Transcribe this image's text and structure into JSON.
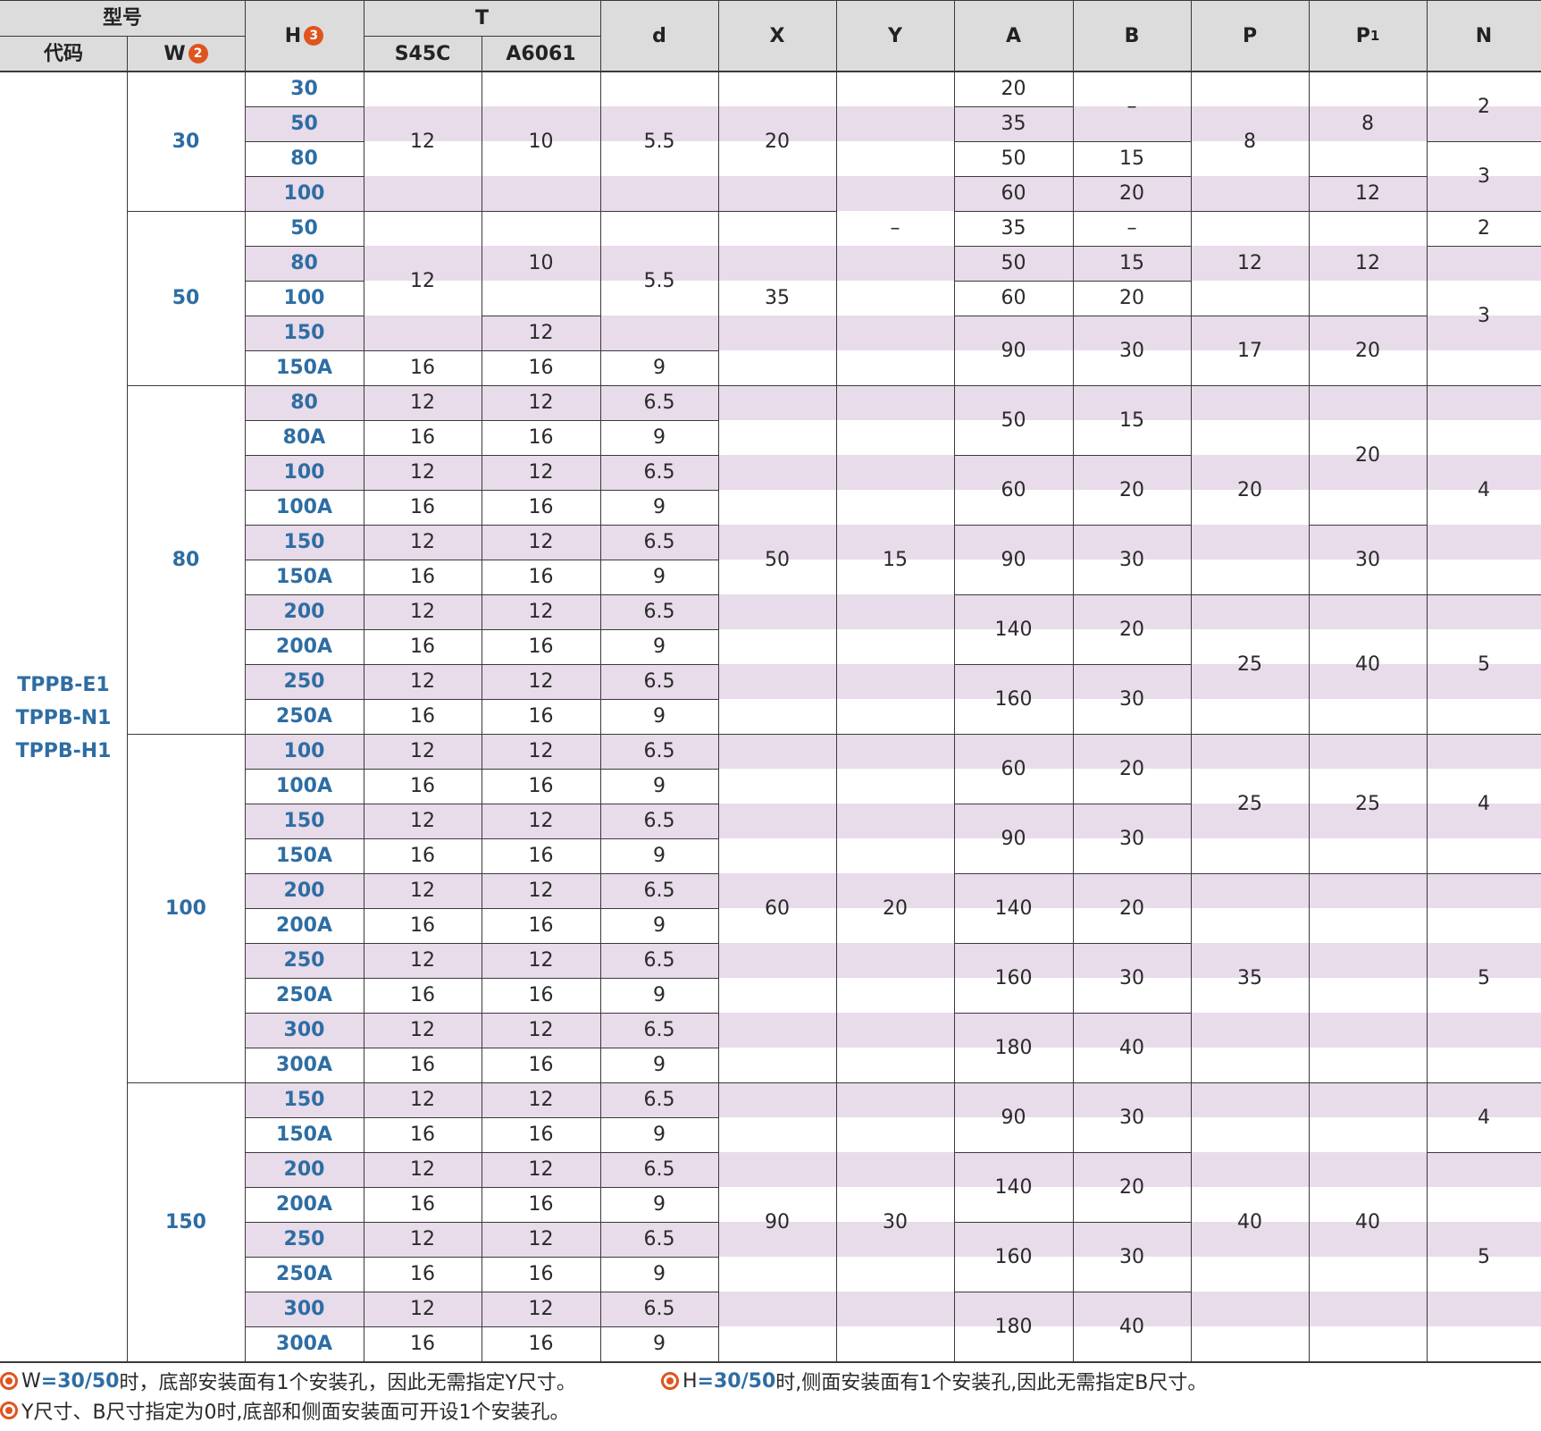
{
  "headers": {
    "model": "型号",
    "code": "代码",
    "w": "W",
    "w_badge": "2",
    "h": "H",
    "h_badge": "3",
    "t": "T",
    "s45c": "S45C",
    "a6061": "A6061",
    "d": "d",
    "x": "X",
    "y": "Y",
    "a": "A",
    "b": "B",
    "p": "P",
    "p1_main": "P",
    "p1_sub": "1",
    "n": "N"
  },
  "codes": [
    "TPPB-E1",
    "TPPB-N1",
    "TPPB-H1"
  ],
  "groups": [
    {
      "w": "30",
      "rows": [
        0,
        3
      ]
    },
    {
      "w": "50",
      "rows": [
        4,
        8
      ]
    },
    {
      "w": "80",
      "rows": [
        9,
        18
      ]
    },
    {
      "w": "100",
      "rows": [
        19,
        28
      ]
    },
    {
      "w": "150",
      "rows": [
        29,
        36
      ]
    }
  ],
  "h_values": [
    "30",
    "50",
    "80",
    "100",
    "50",
    "80",
    "100",
    "150",
    "150A",
    "80",
    "80A",
    "100",
    "100A",
    "150",
    "150A",
    "200",
    "200A",
    "250",
    "250A",
    "100",
    "100A",
    "150",
    "150A",
    "200",
    "200A",
    "250",
    "250A",
    "300",
    "300A",
    "150",
    "150A",
    "200",
    "200A",
    "250",
    "250A",
    "300",
    "300A"
  ],
  "spans": {
    "s45c": [
      [
        0,
        3,
        "12"
      ],
      [
        4,
        7,
        "12"
      ],
      [
        8,
        8,
        "16"
      ],
      [
        9,
        9,
        "12"
      ],
      [
        10,
        10,
        "16"
      ],
      [
        11,
        11,
        "12"
      ],
      [
        12,
        12,
        "16"
      ],
      [
        13,
        13,
        "12"
      ],
      [
        14,
        14,
        "16"
      ],
      [
        15,
        15,
        "12"
      ],
      [
        16,
        16,
        "16"
      ],
      [
        17,
        17,
        "12"
      ],
      [
        18,
        18,
        "16"
      ],
      [
        19,
        19,
        "12"
      ],
      [
        20,
        20,
        "16"
      ],
      [
        21,
        21,
        "12"
      ],
      [
        22,
        22,
        "16"
      ],
      [
        23,
        23,
        "12"
      ],
      [
        24,
        24,
        "16"
      ],
      [
        25,
        25,
        "12"
      ],
      [
        26,
        26,
        "16"
      ],
      [
        27,
        27,
        "12"
      ],
      [
        28,
        28,
        "16"
      ],
      [
        29,
        29,
        "12"
      ],
      [
        30,
        30,
        "16"
      ],
      [
        31,
        31,
        "12"
      ],
      [
        32,
        32,
        "16"
      ],
      [
        33,
        33,
        "12"
      ],
      [
        34,
        34,
        "16"
      ],
      [
        35,
        35,
        "12"
      ],
      [
        36,
        36,
        "16"
      ]
    ],
    "a6061": [
      [
        0,
        3,
        "10"
      ],
      [
        4,
        6,
        "10"
      ],
      [
        7,
        7,
        "12"
      ],
      [
        8,
        8,
        "16"
      ],
      [
        9,
        9,
        "12"
      ],
      [
        10,
        10,
        "16"
      ],
      [
        11,
        11,
        "12"
      ],
      [
        12,
        12,
        "16"
      ],
      [
        13,
        13,
        "12"
      ],
      [
        14,
        14,
        "16"
      ],
      [
        15,
        15,
        "12"
      ],
      [
        16,
        16,
        "16"
      ],
      [
        17,
        17,
        "12"
      ],
      [
        18,
        18,
        "16"
      ],
      [
        19,
        19,
        "12"
      ],
      [
        20,
        20,
        "16"
      ],
      [
        21,
        21,
        "12"
      ],
      [
        22,
        22,
        "16"
      ],
      [
        23,
        23,
        "12"
      ],
      [
        24,
        24,
        "16"
      ],
      [
        25,
        25,
        "12"
      ],
      [
        26,
        26,
        "16"
      ],
      [
        27,
        27,
        "12"
      ],
      [
        28,
        28,
        "16"
      ],
      [
        29,
        29,
        "12"
      ],
      [
        30,
        30,
        "16"
      ],
      [
        31,
        31,
        "12"
      ],
      [
        32,
        32,
        "16"
      ],
      [
        33,
        33,
        "12"
      ],
      [
        34,
        34,
        "16"
      ],
      [
        35,
        35,
        "12"
      ],
      [
        36,
        36,
        "16"
      ]
    ],
    "d": [
      [
        0,
        3,
        "5.5"
      ],
      [
        4,
        7,
        "5.5"
      ],
      [
        8,
        8,
        "9"
      ],
      [
        9,
        9,
        "6.5"
      ],
      [
        10,
        10,
        "9"
      ],
      [
        11,
        11,
        "6.5"
      ],
      [
        12,
        12,
        "9"
      ],
      [
        13,
        13,
        "6.5"
      ],
      [
        14,
        14,
        "9"
      ],
      [
        15,
        15,
        "6.5"
      ],
      [
        16,
        16,
        "9"
      ],
      [
        17,
        17,
        "6.5"
      ],
      [
        18,
        18,
        "9"
      ],
      [
        19,
        19,
        "6.5"
      ],
      [
        20,
        20,
        "9"
      ],
      [
        21,
        21,
        "6.5"
      ],
      [
        22,
        22,
        "9"
      ],
      [
        23,
        23,
        "6.5"
      ],
      [
        24,
        24,
        "9"
      ],
      [
        25,
        25,
        "6.5"
      ],
      [
        26,
        26,
        "9"
      ],
      [
        27,
        27,
        "6.5"
      ],
      [
        28,
        28,
        "9"
      ],
      [
        29,
        29,
        "6.5"
      ],
      [
        30,
        30,
        "9"
      ],
      [
        31,
        31,
        "6.5"
      ],
      [
        32,
        32,
        "9"
      ],
      [
        33,
        33,
        "6.5"
      ],
      [
        34,
        34,
        "9"
      ],
      [
        35,
        35,
        "6.5"
      ],
      [
        36,
        36,
        "9"
      ]
    ],
    "x": [
      [
        0,
        3,
        "20"
      ],
      [
        4,
        8,
        "35"
      ],
      [
        9,
        18,
        "50"
      ],
      [
        19,
        28,
        "60"
      ],
      [
        29,
        36,
        "90"
      ]
    ],
    "y": [
      [
        0,
        8,
        "–"
      ],
      [
        9,
        18,
        "15"
      ],
      [
        19,
        28,
        "20"
      ],
      [
        29,
        36,
        "30"
      ]
    ],
    "a": [
      [
        0,
        0,
        "20"
      ],
      [
        1,
        1,
        "35"
      ],
      [
        2,
        2,
        "50"
      ],
      [
        3,
        3,
        "60"
      ],
      [
        4,
        4,
        "35"
      ],
      [
        5,
        5,
        "50"
      ],
      [
        6,
        6,
        "60"
      ],
      [
        7,
        8,
        "90"
      ],
      [
        9,
        10,
        "50"
      ],
      [
        11,
        12,
        "60"
      ],
      [
        13,
        14,
        "90"
      ],
      [
        15,
        16,
        "140"
      ],
      [
        17,
        18,
        "160"
      ],
      [
        19,
        20,
        "60"
      ],
      [
        21,
        22,
        "90"
      ],
      [
        23,
        24,
        "140"
      ],
      [
        25,
        26,
        "160"
      ],
      [
        27,
        28,
        "180"
      ],
      [
        29,
        30,
        "90"
      ],
      [
        31,
        32,
        "140"
      ],
      [
        33,
        34,
        "160"
      ],
      [
        35,
        36,
        "180"
      ]
    ],
    "b": [
      [
        0,
        1,
        "–"
      ],
      [
        2,
        2,
        "15"
      ],
      [
        3,
        3,
        "20"
      ],
      [
        4,
        4,
        "–"
      ],
      [
        5,
        5,
        "15"
      ],
      [
        6,
        6,
        "20"
      ],
      [
        7,
        8,
        "30"
      ],
      [
        9,
        10,
        "15"
      ],
      [
        11,
        12,
        "20"
      ],
      [
        13,
        14,
        "30"
      ],
      [
        15,
        16,
        "20"
      ],
      [
        17,
        18,
        "30"
      ],
      [
        19,
        20,
        "20"
      ],
      [
        21,
        22,
        "30"
      ],
      [
        23,
        24,
        "20"
      ],
      [
        25,
        26,
        "30"
      ],
      [
        27,
        28,
        "40"
      ],
      [
        29,
        30,
        "30"
      ],
      [
        31,
        32,
        "20"
      ],
      [
        33,
        34,
        "30"
      ],
      [
        35,
        36,
        "40"
      ]
    ],
    "p": [
      [
        0,
        3,
        "8"
      ],
      [
        4,
        6,
        "12"
      ],
      [
        7,
        8,
        "17"
      ],
      [
        9,
        14,
        "20"
      ],
      [
        15,
        18,
        "25"
      ],
      [
        19,
        22,
        "25"
      ],
      [
        23,
        28,
        "35"
      ],
      [
        29,
        36,
        "40"
      ]
    ],
    "p1": [
      [
        0,
        2,
        "8"
      ],
      [
        3,
        3,
        "12"
      ],
      [
        4,
        6,
        "12"
      ],
      [
        7,
        8,
        "20"
      ],
      [
        9,
        12,
        "20"
      ],
      [
        13,
        14,
        "30"
      ],
      [
        15,
        18,
        "40"
      ],
      [
        19,
        22,
        "25"
      ],
      [
        23,
        28,
        ""
      ],
      [
        29,
        36,
        "40"
      ]
    ],
    "n": [
      [
        0,
        1,
        "2"
      ],
      [
        2,
        3,
        "3"
      ],
      [
        4,
        4,
        "2"
      ],
      [
        5,
        8,
        "3"
      ],
      [
        9,
        14,
        "4"
      ],
      [
        15,
        18,
        "5"
      ],
      [
        19,
        22,
        "4"
      ],
      [
        23,
        28,
        "5"
      ],
      [
        29,
        30,
        "4"
      ],
      [
        31,
        36,
        "5"
      ]
    ]
  },
  "notes": {
    "n1_prefix": "W",
    "n1_hl": "=30/50",
    "n1_text": "时，底部安装面有1个安装孔，因此无需指定Y尺寸。",
    "n2_prefix": "H",
    "n2_hl": "=30/50",
    "n2_text": "时,侧面安装面有1个安装孔,因此无需指定B尺寸。",
    "n3_text": "Y尺寸、B尺寸指定为0时,底部和侧面安装面可开设1个安装孔。"
  },
  "colors": {
    "band": "#e8dbea",
    "header": "#dcdcdc",
    "accent_blue": "#2e6da3",
    "badge_orange": "#e0541e"
  }
}
